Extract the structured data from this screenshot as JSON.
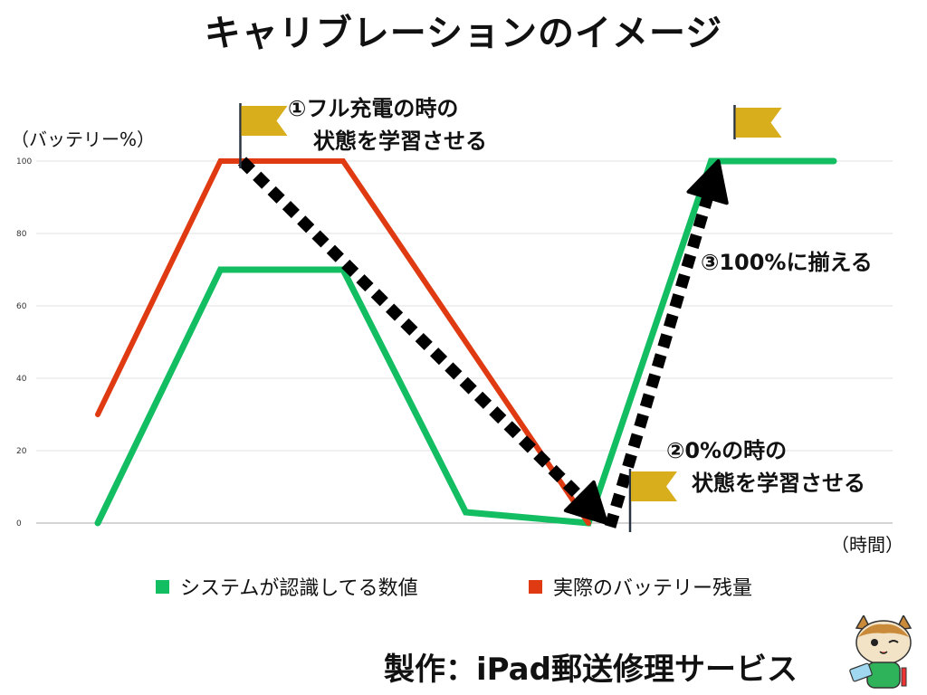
{
  "title": "キャリブレーションのイメージ",
  "credit": "製作：iPad郵送修理サービス",
  "colors": {
    "system": "#13bd62",
    "actual": "#df3a12",
    "flag": "#d8ae1c",
    "arrow": "#000000",
    "grid": "#e2e2e2"
  },
  "chart_data": {
    "type": "line",
    "ylabel": "（バッテリー%）",
    "xlabel": "（時間）",
    "ylim": [
      0,
      100
    ],
    "yticks": [
      0,
      20,
      40,
      60,
      80,
      100
    ],
    "grid": true,
    "legend_position": "bottom",
    "series": [
      {
        "name": "システムが認識してる数値",
        "color": "#13bd62",
        "points": [
          [
            0,
            0
          ],
          [
            1,
            70
          ],
          [
            2,
            70
          ],
          [
            3,
            3
          ],
          [
            4,
            0
          ],
          [
            5,
            100
          ],
          [
            6,
            100
          ]
        ]
      },
      {
        "name": "実際のバッテリー残量",
        "color": "#df3a12",
        "points": [
          [
            0,
            30
          ],
          [
            1,
            100
          ],
          [
            2,
            100
          ],
          [
            4,
            0
          ]
        ]
      }
    ],
    "annotations": [
      {
        "id": "1",
        "line1": "①フル充電の時の",
        "line2": "状態を学習させる"
      },
      {
        "id": "2",
        "line1": "②0%の時の",
        "line2": "状態を学習させる"
      },
      {
        "id": "3",
        "line1": "③100%に揃える"
      }
    ]
  }
}
